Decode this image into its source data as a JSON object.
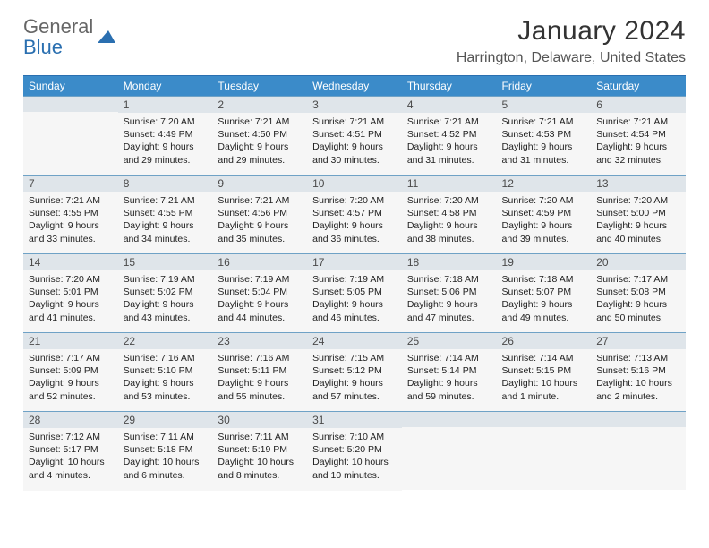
{
  "logo": {
    "line1": "General",
    "line2": "Blue"
  },
  "title": "January 2024",
  "location": "Harrington, Delaware, United States",
  "weekdays": [
    "Sunday",
    "Monday",
    "Tuesday",
    "Wednesday",
    "Thursday",
    "Friday",
    "Saturday"
  ],
  "colors": {
    "header_bg": "#3b8bc9",
    "header_border": "#2a6fb0",
    "daynum_bg": "#dfe5ea",
    "daynum_border": "#6fa2c6",
    "details_bg": "#f6f6f6",
    "page_bg": "#ffffff",
    "logo_gray": "#666666",
    "logo_blue": "#2a6fb0"
  },
  "typography": {
    "title_fontsize": 30,
    "location_fontsize": 16,
    "weekday_fontsize": 12,
    "daynum_fontsize": 12,
    "details_fontsize": 10.5
  },
  "start_offset": 1,
  "days": [
    {
      "n": 1,
      "sr": "7:20 AM",
      "ss": "4:49 PM",
      "dl": "9 hours and 29 minutes."
    },
    {
      "n": 2,
      "sr": "7:21 AM",
      "ss": "4:50 PM",
      "dl": "9 hours and 29 minutes."
    },
    {
      "n": 3,
      "sr": "7:21 AM",
      "ss": "4:51 PM",
      "dl": "9 hours and 30 minutes."
    },
    {
      "n": 4,
      "sr": "7:21 AM",
      "ss": "4:52 PM",
      "dl": "9 hours and 31 minutes."
    },
    {
      "n": 5,
      "sr": "7:21 AM",
      "ss": "4:53 PM",
      "dl": "9 hours and 31 minutes."
    },
    {
      "n": 6,
      "sr": "7:21 AM",
      "ss": "4:54 PM",
      "dl": "9 hours and 32 minutes."
    },
    {
      "n": 7,
      "sr": "7:21 AM",
      "ss": "4:55 PM",
      "dl": "9 hours and 33 minutes."
    },
    {
      "n": 8,
      "sr": "7:21 AM",
      "ss": "4:55 PM",
      "dl": "9 hours and 34 minutes."
    },
    {
      "n": 9,
      "sr": "7:21 AM",
      "ss": "4:56 PM",
      "dl": "9 hours and 35 minutes."
    },
    {
      "n": 10,
      "sr": "7:20 AM",
      "ss": "4:57 PM",
      "dl": "9 hours and 36 minutes."
    },
    {
      "n": 11,
      "sr": "7:20 AM",
      "ss": "4:58 PM",
      "dl": "9 hours and 38 minutes."
    },
    {
      "n": 12,
      "sr": "7:20 AM",
      "ss": "4:59 PM",
      "dl": "9 hours and 39 minutes."
    },
    {
      "n": 13,
      "sr": "7:20 AM",
      "ss": "5:00 PM",
      "dl": "9 hours and 40 minutes."
    },
    {
      "n": 14,
      "sr": "7:20 AM",
      "ss": "5:01 PM",
      "dl": "9 hours and 41 minutes."
    },
    {
      "n": 15,
      "sr": "7:19 AM",
      "ss": "5:02 PM",
      "dl": "9 hours and 43 minutes."
    },
    {
      "n": 16,
      "sr": "7:19 AM",
      "ss": "5:04 PM",
      "dl": "9 hours and 44 minutes."
    },
    {
      "n": 17,
      "sr": "7:19 AM",
      "ss": "5:05 PM",
      "dl": "9 hours and 46 minutes."
    },
    {
      "n": 18,
      "sr": "7:18 AM",
      "ss": "5:06 PM",
      "dl": "9 hours and 47 minutes."
    },
    {
      "n": 19,
      "sr": "7:18 AM",
      "ss": "5:07 PM",
      "dl": "9 hours and 49 minutes."
    },
    {
      "n": 20,
      "sr": "7:17 AM",
      "ss": "5:08 PM",
      "dl": "9 hours and 50 minutes."
    },
    {
      "n": 21,
      "sr": "7:17 AM",
      "ss": "5:09 PM",
      "dl": "9 hours and 52 minutes."
    },
    {
      "n": 22,
      "sr": "7:16 AM",
      "ss": "5:10 PM",
      "dl": "9 hours and 53 minutes."
    },
    {
      "n": 23,
      "sr": "7:16 AM",
      "ss": "5:11 PM",
      "dl": "9 hours and 55 minutes."
    },
    {
      "n": 24,
      "sr": "7:15 AM",
      "ss": "5:12 PM",
      "dl": "9 hours and 57 minutes."
    },
    {
      "n": 25,
      "sr": "7:14 AM",
      "ss": "5:14 PM",
      "dl": "9 hours and 59 minutes."
    },
    {
      "n": 26,
      "sr": "7:14 AM",
      "ss": "5:15 PM",
      "dl": "10 hours and 1 minute."
    },
    {
      "n": 27,
      "sr": "7:13 AM",
      "ss": "5:16 PM",
      "dl": "10 hours and 2 minutes."
    },
    {
      "n": 28,
      "sr": "7:12 AM",
      "ss": "5:17 PM",
      "dl": "10 hours and 4 minutes."
    },
    {
      "n": 29,
      "sr": "7:11 AM",
      "ss": "5:18 PM",
      "dl": "10 hours and 6 minutes."
    },
    {
      "n": 30,
      "sr": "7:11 AM",
      "ss": "5:19 PM",
      "dl": "10 hours and 8 minutes."
    },
    {
      "n": 31,
      "sr": "7:10 AM",
      "ss": "5:20 PM",
      "dl": "10 hours and 10 minutes."
    }
  ],
  "labels": {
    "sunrise": "Sunrise:",
    "sunset": "Sunset:",
    "daylight": "Daylight:"
  }
}
